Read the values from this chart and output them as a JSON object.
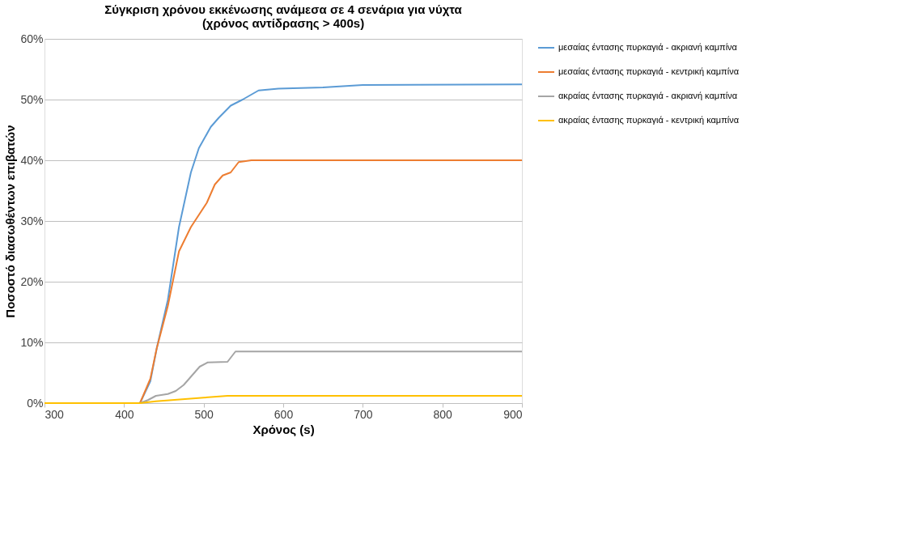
{
  "chart_data": {
    "type": "line",
    "title": [
      "Σύγκριση χρόνου εκκένωσης ανάμεσα σε 4 σενάρια για νύχτα",
      "(χρόνος αντίδρασης > 400s)"
    ],
    "xlabel": "Χρόνος (s)",
    "ylabel": "Ποσοστό διασωθέντων επιβατών",
    "xlim": [
      300,
      900
    ],
    "xticks": [
      300,
      400,
      500,
      600,
      700,
      800,
      900
    ],
    "ylim": [
      0,
      60
    ],
    "yticks": [
      {
        "value": 0,
        "label": "0%"
      },
      {
        "value": 10,
        "label": "10%"
      },
      {
        "value": 20,
        "label": "20%"
      },
      {
        "value": 30,
        "label": "30%"
      },
      {
        "value": 40,
        "label": "40%"
      },
      {
        "value": 50,
        "label": "50%"
      },
      {
        "value": 60,
        "label": "60%"
      }
    ],
    "grid": "y",
    "legend": "right",
    "line_style": "solid",
    "marker": "none",
    "series": [
      {
        "name": "μεσαίας έντασης πυρκαγιά - ακριανή καμπίνα",
        "color": "#5b9bd5",
        "x": [
          300,
          420,
          433,
          441,
          455,
          469,
          484,
          494,
          509,
          519,
          534,
          549,
          569,
          594,
          650,
          700,
          900
        ],
        "values": [
          0,
          0,
          3.6,
          9,
          17,
          29,
          38,
          42,
          45.5,
          47,
          49,
          50,
          51.5,
          51.8,
          52,
          52.4,
          52.5
        ]
      },
      {
        "name": "μεσαίας έντασης πυρκαγιά - κεντρική καμπίνα",
        "color": "#ed7d31",
        "x": [
          300,
          420,
          433,
          441,
          455,
          469,
          484,
          494,
          504,
          514,
          524,
          534,
          544,
          560,
          900
        ],
        "values": [
          0,
          0,
          4,
          9,
          16,
          25,
          29,
          31,
          33,
          36,
          37.5,
          38,
          39.7,
          40,
          40
        ]
      },
      {
        "name": "ακραίας έντασης πυρκαγιά - ακριανή καμπίνα",
        "color": "#a5a5a5",
        "x": [
          300,
          420,
          430,
          440,
          455,
          465,
          475,
          485,
          495,
          505,
          530,
          540,
          900
        ],
        "values": [
          0,
          0,
          0.5,
          1.2,
          1.5,
          2,
          3,
          4.5,
          6,
          6.7,
          6.8,
          8.5,
          8.5
        ]
      },
      {
        "name": "ακραίας έντασης πυρκαγιά - κεντρική καμπίνα",
        "color": "#ffc000",
        "x": [
          300,
          420,
          440,
          470,
          500,
          530,
          900
        ],
        "values": [
          0,
          0,
          0.3,
          0.6,
          0.9,
          1.2,
          1.2
        ]
      }
    ]
  }
}
